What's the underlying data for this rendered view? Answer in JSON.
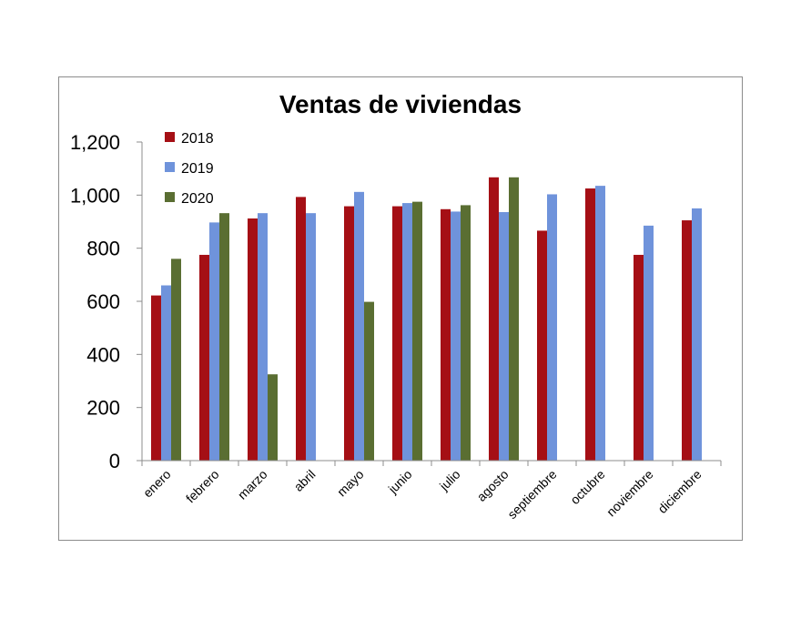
{
  "chart_data": {
    "type": "bar",
    "title": "Ventas de viviendas",
    "xlabel": "",
    "ylabel": "",
    "ylim": [
      0,
      1200
    ],
    "yticks": [
      "0",
      "200",
      "400",
      "600",
      "800",
      "1,000",
      "1,200"
    ],
    "categories": [
      "enero",
      "febrero",
      "marzo",
      "abril",
      "mayo",
      "junio",
      "julio",
      "agosto",
      "septiembre",
      "octubre",
      "noviembre",
      "diciembre"
    ],
    "series": [
      {
        "name": "2018",
        "color": "#a50f15",
        "values": [
          622,
          775,
          912,
          993,
          958,
          958,
          947,
          1067,
          866,
          1025,
          775,
          905
        ]
      },
      {
        "name": "2019",
        "color": "#6f93db",
        "values": [
          660,
          897,
          932,
          932,
          1012,
          970,
          938,
          936,
          1003,
          1035,
          885,
          950
        ]
      },
      {
        "name": "2020",
        "color": "#5a6e32",
        "values": [
          760,
          932,
          325,
          null,
          598,
          975,
          962,
          1067,
          null,
          null,
          null,
          null
        ]
      }
    ],
    "legend_position": "top-left",
    "grid": false
  }
}
